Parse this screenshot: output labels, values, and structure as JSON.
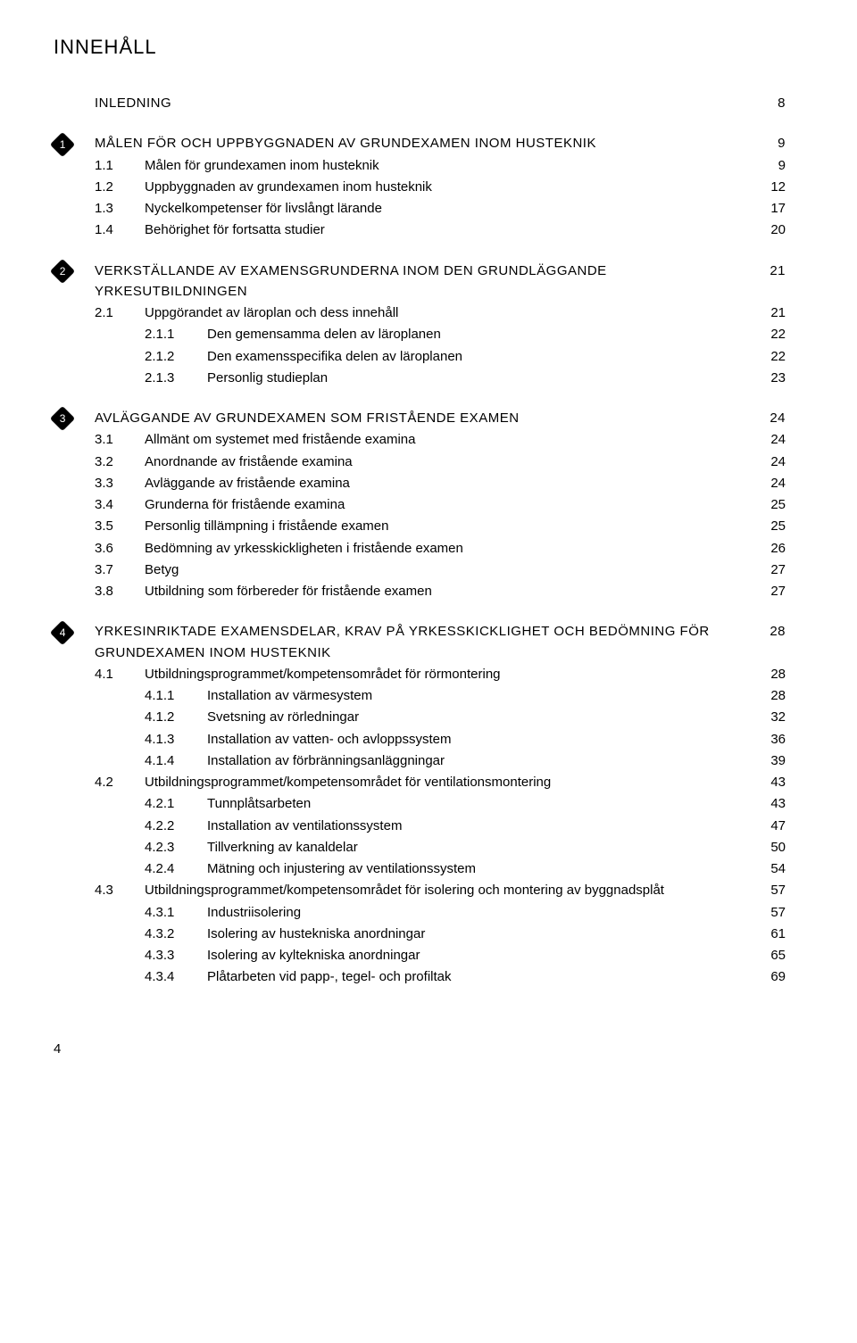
{
  "page_title": "INNEHÅLL",
  "footer_page": "4",
  "colors": {
    "text": "#000000",
    "bg": "#ffffff",
    "badge_bg": "#000000",
    "badge_fg": "#ffffff"
  },
  "fonts": {
    "body_size_pt": 11,
    "title_size_pt": 16
  },
  "entries": [
    {
      "type": "section",
      "badge": "",
      "label": "INLEDNING",
      "page": "8",
      "first": true
    },
    {
      "type": "section",
      "badge": "1",
      "label": "MÅLEN FÖR OCH UPPBYGGNADEN AV GRUNDEXAMEN INOM HUSTEKNIK",
      "page": "9"
    },
    {
      "type": "l1",
      "num": "1.1",
      "label": "Målen för grundexamen inom husteknik",
      "page": "9"
    },
    {
      "type": "l1",
      "num": "1.2",
      "label": "Uppbyggnaden av grundexamen inom husteknik",
      "page": "12"
    },
    {
      "type": "l1",
      "num": "1.3",
      "label": "Nyckelkompetenser för livslångt lärande",
      "page": "17"
    },
    {
      "type": "l1",
      "num": "1.4",
      "label": "Behörighet för fortsatta studier",
      "page": "20"
    },
    {
      "type": "section",
      "badge": "2",
      "label": "VERKSTÄLLANDE AV EXAMENSGRUNDERNA INOM DEN GRUNDLÄGGANDE YRKESUTBILDNINGEN",
      "page": "21"
    },
    {
      "type": "l1",
      "num": "2.1",
      "label": "Uppgörandet av läroplan och dess innehåll",
      "page": "21"
    },
    {
      "type": "l2",
      "num": "2.1.1",
      "label": "Den gemensamma delen av läroplanen",
      "page": "22"
    },
    {
      "type": "l2",
      "num": "2.1.2",
      "label": "Den examensspecifika delen av läroplanen",
      "page": "22"
    },
    {
      "type": "l2",
      "num": "2.1.3",
      "label": "Personlig studieplan",
      "page": "23"
    },
    {
      "type": "section",
      "badge": "3",
      "label": "AVLÄGGANDE AV GRUNDEXAMEN SOM FRISTÅENDE EXAMEN",
      "page": "24"
    },
    {
      "type": "l1",
      "num": "3.1",
      "label": "Allmänt om systemet med fristående examina",
      "page": "24"
    },
    {
      "type": "l1",
      "num": "3.2",
      "label": "Anordnande av fristående examina",
      "page": "24"
    },
    {
      "type": "l1",
      "num": "3.3",
      "label": "Avläggande av fristående examina",
      "page": "24"
    },
    {
      "type": "l1",
      "num": "3.4",
      "label": "Grunderna för fristående examina",
      "page": "25"
    },
    {
      "type": "l1",
      "num": "3.5",
      "label": "Personlig tillämpning i fristående examen",
      "page": "25"
    },
    {
      "type": "l1",
      "num": "3.6",
      "label": "Bedömning av yrkesskickligheten i fristående examen",
      "page": "26"
    },
    {
      "type": "l1",
      "num": "3.7",
      "label": "Betyg",
      "page": "27"
    },
    {
      "type": "l1",
      "num": "3.8",
      "label": "Utbildning som förbereder för fristående examen",
      "page": "27"
    },
    {
      "type": "section",
      "badge": "4",
      "label": "YRKESINRIKTADE EXAMENSDELAR, KRAV PÅ YRKESSKICKLIGHET OCH BEDÖMNING FÖR GRUNDEXAMEN INOM HUSTEKNIK",
      "page": "28"
    },
    {
      "type": "l1",
      "num": "4.1",
      "label": "Utbildningsprogrammet/kompetensområdet för rörmontering",
      "page": "28"
    },
    {
      "type": "l2",
      "num": "4.1.1",
      "label": "Installation av värmesystem",
      "page": "28"
    },
    {
      "type": "l2",
      "num": "4.1.2",
      "label": "Svetsning av rörledningar",
      "page": "32"
    },
    {
      "type": "l2",
      "num": "4.1.3",
      "label": "Installation av vatten- och avloppssystem",
      "page": "36"
    },
    {
      "type": "l2",
      "num": "4.1.4",
      "label": "Installation av förbränningsanläggningar",
      "page": "39"
    },
    {
      "type": "l1",
      "num": "4.2",
      "label": "Utbildningsprogrammet/kompetensområdet för ventilationsmontering",
      "page": "43"
    },
    {
      "type": "l2",
      "num": "4.2.1",
      "label": "Tunnplåtsarbeten",
      "page": "43"
    },
    {
      "type": "l2",
      "num": "4.2.2",
      "label": "Installation av ventilationssystem",
      "page": "47"
    },
    {
      "type": "l2",
      "num": "4.2.3",
      "label": "Tillverkning av kanaldelar",
      "page": "50"
    },
    {
      "type": "l2",
      "num": "4.2.4",
      "label": "Mätning och injustering av ventilationssystem",
      "page": "54"
    },
    {
      "type": "l1",
      "num": "4.3",
      "label": "Utbildningsprogrammet/kompetensområdet för isolering och montering av byggnadsplåt",
      "page": "57"
    },
    {
      "type": "l2",
      "num": "4.3.1",
      "label": "Industriisolering",
      "page": "57"
    },
    {
      "type": "l2",
      "num": "4.3.2",
      "label": "Isolering av hustekniska anordningar",
      "page": "61"
    },
    {
      "type": "l2",
      "num": "4.3.3",
      "label": "Isolering av kyltekniska anordningar",
      "page": "65"
    },
    {
      "type": "l2",
      "num": "4.3.4",
      "label": "Plåtarbeten vid papp-, tegel- och profiltak",
      "page": "69"
    }
  ]
}
